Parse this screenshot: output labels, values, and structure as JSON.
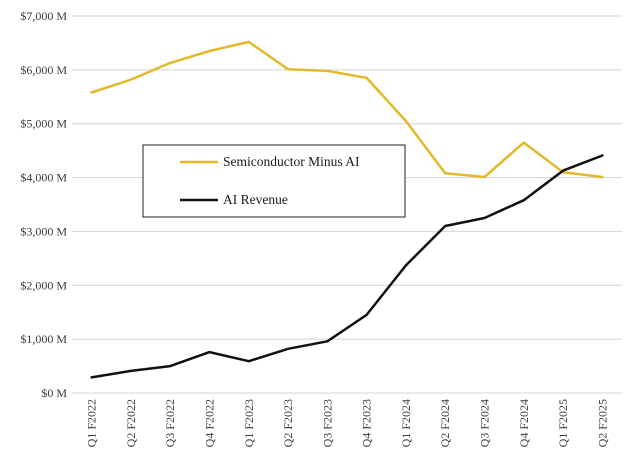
{
  "chart_data": {
    "type": "line",
    "categories": [
      "Q1 F2022",
      "Q2 F2022",
      "Q3 F2022",
      "Q4 F2022",
      "Q1 F2023",
      "Q2 F2023",
      "Q3 F2023",
      "Q4 F2023",
      "Q1 F2024",
      "Q2 F2024",
      "Q3 F2024",
      "Q4 F2024",
      "Q1 F2025",
      "Q2 F2025"
    ],
    "series": [
      {
        "name": "Semiconductor Minus AI",
        "color": "#e3b92b",
        "values": [
          5580,
          5820,
          6130,
          6350,
          6520,
          6010,
          5980,
          5850,
          5050,
          4080,
          4010,
          4650,
          4100,
          4010
        ]
      },
      {
        "name": "AI Revenue",
        "color": "#111111",
        "values": [
          290,
          410,
          500,
          760,
          590,
          820,
          960,
          1450,
          2370,
          3100,
          3250,
          3580,
          4130,
          4410
        ]
      }
    ],
    "ylim": [
      0,
      7000
    ],
    "yticks": [
      0,
      1000,
      2000,
      3000,
      4000,
      5000,
      6000,
      7000
    ],
    "ytick_labels": [
      "$0 M",
      "$1,000 M",
      "$2,000 M",
      "$3,000 M",
      "$4,000 M",
      "$5,000 M",
      "$6,000 M",
      "$7,000 M"
    ],
    "grid": true,
    "legend_position": "center-left",
    "title": "",
    "xlabel": "",
    "ylabel": ""
  }
}
